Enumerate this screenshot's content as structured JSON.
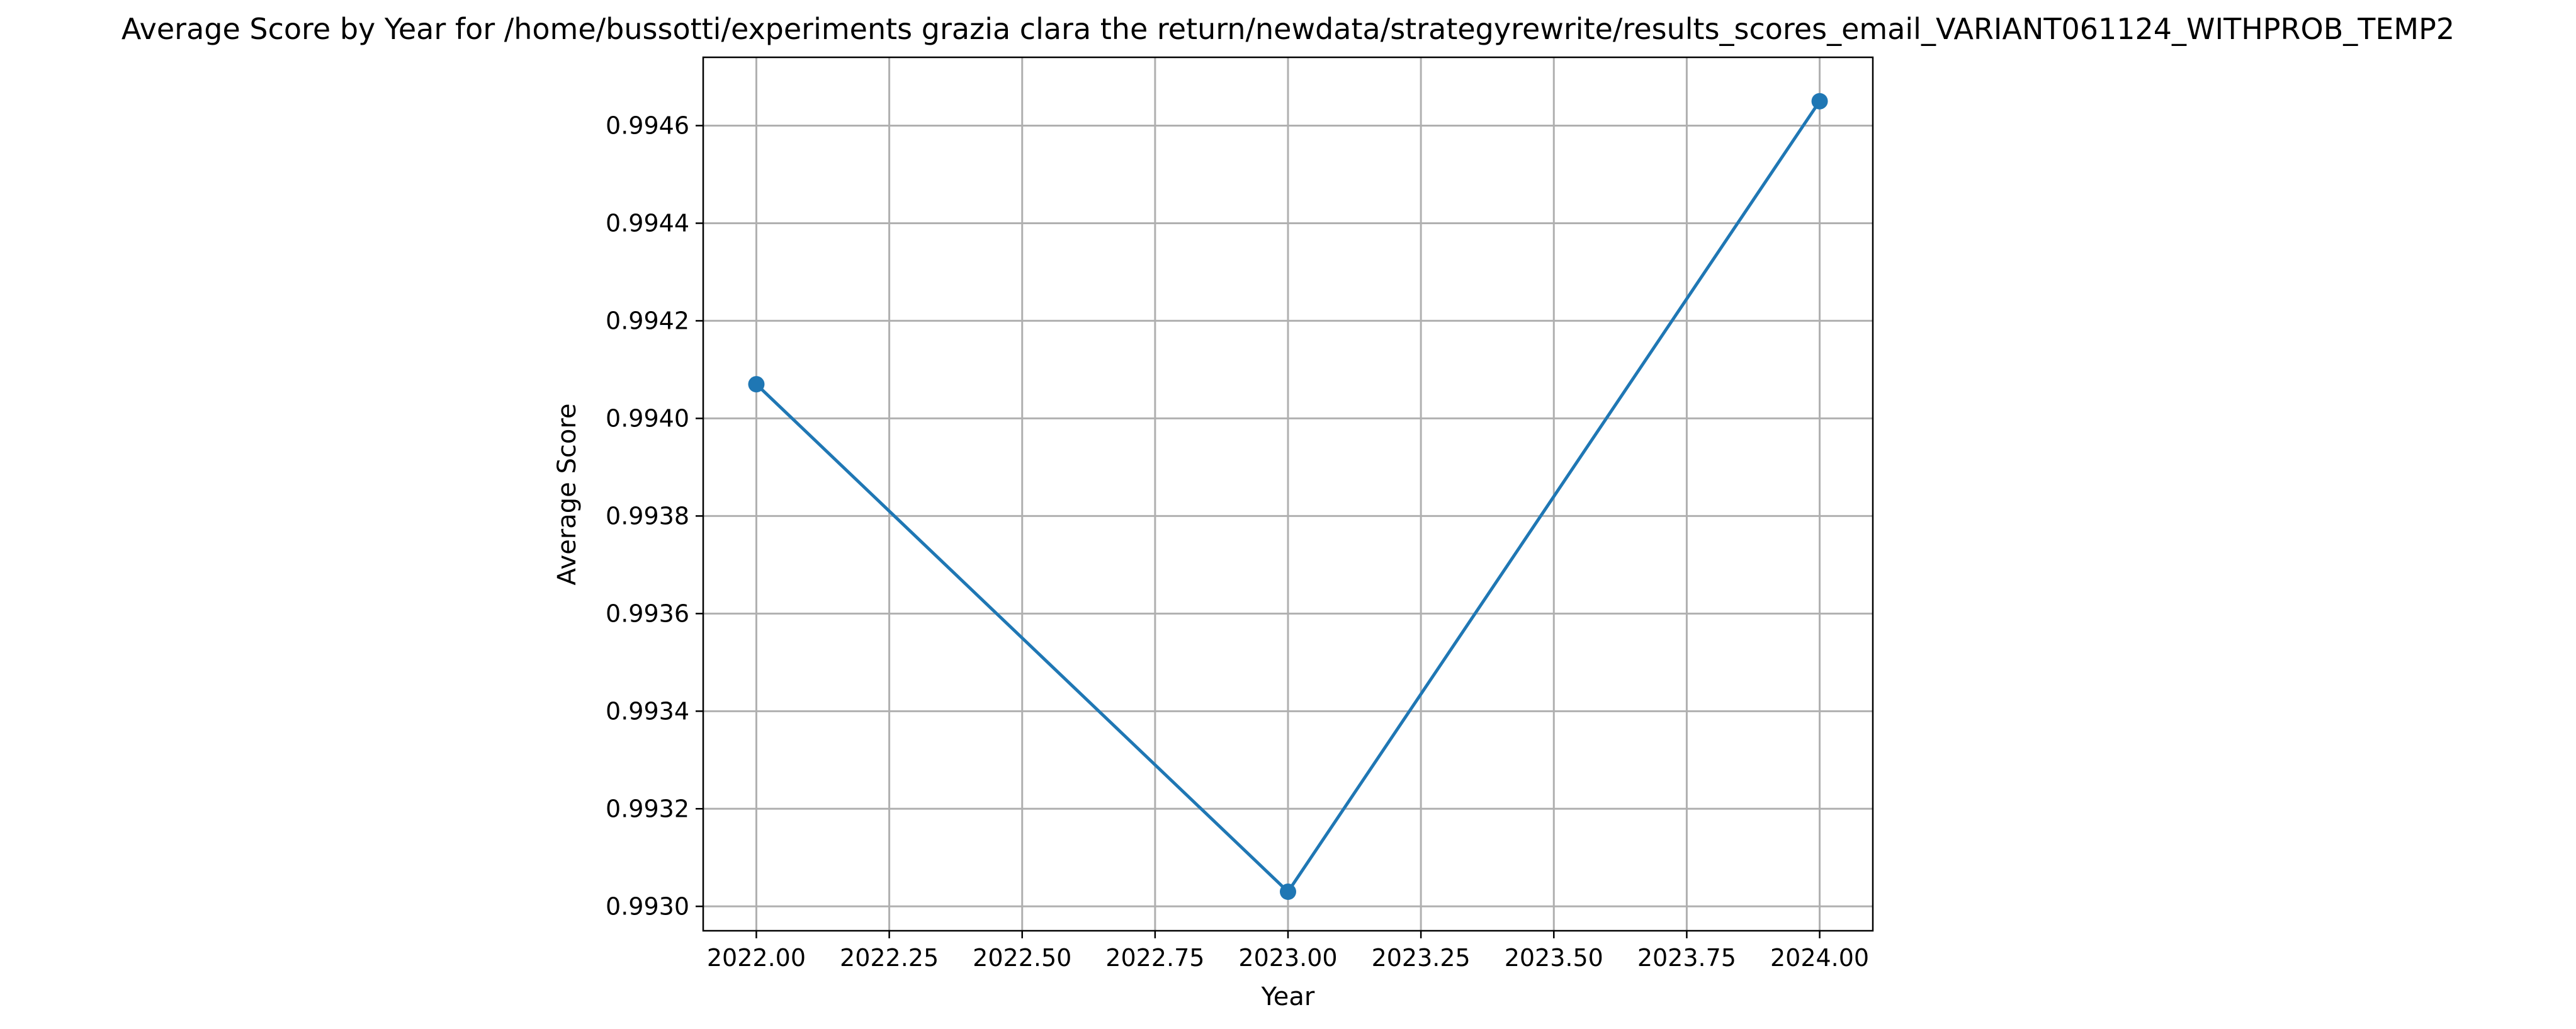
{
  "chart_data": {
    "type": "line",
    "title": "Average Score by Year for /home/bussotti/experiments grazia clara the return/newdata/strategyrewrite/results_scores_email_VARIANT061124_WITHPROB_TEMP2",
    "xlabel": "Year",
    "ylabel": "Average Score",
    "xlim": [
      2021.9,
      2024.1
    ],
    "ylim": [
      0.99295,
      0.99474
    ],
    "x_ticks": [
      2022.0,
      2022.25,
      2022.5,
      2022.75,
      2023.0,
      2023.25,
      2023.5,
      2023.75,
      2024.0
    ],
    "x_tick_labels": [
      "2022.00",
      "2022.25",
      "2022.50",
      "2022.75",
      "2023.00",
      "2023.25",
      "2023.50",
      "2023.75",
      "2024.00"
    ],
    "y_ticks": [
      0.993,
      0.9932,
      0.9934,
      0.9936,
      0.9938,
      0.994,
      0.9942,
      0.9944,
      0.9946
    ],
    "y_tick_labels": [
      "0.9930",
      "0.9932",
      "0.9934",
      "0.9936",
      "0.9938",
      "0.9940",
      "0.9942",
      "0.9944",
      "0.9946"
    ],
    "grid": true,
    "series": [
      {
        "x": [
          2022,
          2023,
          2024
        ],
        "y": [
          0.99407,
          0.99303,
          0.99465
        ],
        "color": "#1f77b4",
        "marker": "circle"
      }
    ]
  }
}
